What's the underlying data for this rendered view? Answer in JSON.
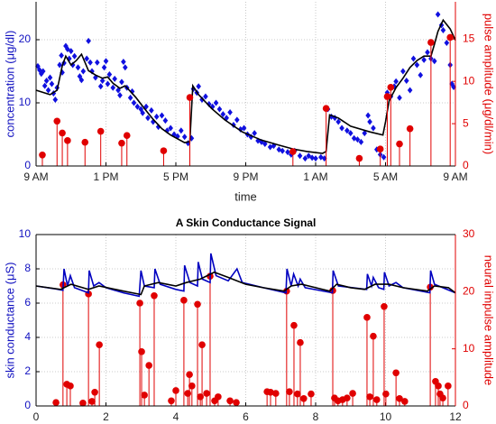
{
  "chart_data": [
    {
      "type": "combo",
      "ylabel": "concentration (μg/dl)",
      "y2label": "pulse amplitude (μg/dl/min)",
      "xlabel": "time",
      "xlim": [
        0,
        24
      ],
      "xticks": [
        {
          "value": 0,
          "label": "9 AM"
        },
        {
          "value": 4,
          "label": "1 PM"
        },
        {
          "value": 8,
          "label": "5 PM"
        },
        {
          "value": 12,
          "label": "9 PM"
        },
        {
          "value": 16,
          "label": "1 AM"
        },
        {
          "value": 20,
          "label": "5 AM"
        },
        {
          "value": 24,
          "label": "9 AM"
        }
      ],
      "ylim": [
        0,
        26
      ],
      "yticks": [
        0,
        10,
        20
      ],
      "y2lim": [
        0,
        19.4
      ],
      "y2ticks": [
        0,
        5,
        10,
        15
      ],
      "grid": true,
      "series": [
        {
          "type": "scatter",
          "color": "#1010e0",
          "x": [
            0.1,
            0.2,
            0.3,
            0.4,
            0.5,
            0.6,
            0.7,
            0.8,
            0.9,
            1.0,
            1.1,
            1.2,
            1.35,
            1.45,
            1.5,
            1.6,
            1.7,
            1.8,
            1.9,
            2.0,
            2.1,
            2.2,
            2.4,
            2.5,
            2.6,
            2.7,
            2.9,
            3.0,
            3.1,
            3.2,
            3.4,
            3.5,
            3.7,
            3.8,
            3.9,
            4.0,
            4.1,
            4.2,
            4.4,
            4.5,
            4.7,
            4.8,
            4.9,
            5.0,
            5.1,
            5.2,
            5.4,
            5.5,
            5.6,
            5.8,
            6.0,
            6.1,
            6.3,
            6.4,
            6.6,
            6.7,
            6.9,
            7.0,
            7.2,
            7.4,
            7.5,
            7.7,
            7.9,
            8.1,
            8.3,
            8.5,
            8.7,
            8.9,
            9.0,
            9.2,
            9.3,
            9.5,
            9.7,
            9.9,
            10.1,
            10.3,
            10.5,
            10.7,
            10.9,
            11.1,
            11.3,
            11.5,
            11.7,
            11.9,
            12.1,
            12.3,
            12.5,
            12.7,
            12.9,
            13.1,
            13.4,
            13.6,
            13.9,
            14.1,
            14.4,
            14.6,
            14.8,
            15.1,
            15.4,
            15.6,
            15.8,
            16.0,
            16.3,
            16.5,
            16.7,
            16.9,
            17.1,
            17.3,
            17.5,
            17.8,
            18.0,
            18.2,
            18.4,
            18.6,
            18.8,
            19.0,
            19.1,
            19.3,
            19.5,
            19.7,
            19.9,
            20.1,
            20.3,
            20.5,
            20.6,
            20.8,
            21.0,
            21.2,
            21.4,
            21.6,
            21.8,
            22.0,
            22.2,
            22.4,
            22.6,
            22.8,
            23.0,
            23.2,
            23.3,
            23.5,
            23.7,
            23.8,
            23.9
          ],
          "values": [
            15.8,
            15.2,
            14.6,
            15,
            12.7,
            13.5,
            12,
            14,
            13,
            11.5,
            10.5,
            12.4,
            16,
            17.5,
            14.8,
            16.3,
            19,
            18.5,
            17,
            18.2,
            16,
            17.4,
            15.6,
            14.2,
            13.6,
            15,
            17,
            19.8,
            16.4,
            15,
            14,
            16.4,
            12.6,
            13.5,
            15.6,
            16.6,
            13,
            14.5,
            12.4,
            13.8,
            12,
            11.2,
            13.3,
            16.5,
            15.6,
            12.4,
            10.8,
            11.8,
            10,
            9.4,
            9,
            8.4,
            9.4,
            7.6,
            8.8,
            7,
            7.8,
            6.2,
            8,
            7.2,
            5.6,
            6,
            5,
            4.7,
            5.6,
            4.6,
            3.6,
            4.4,
            12.2,
            11.6,
            12.6,
            10.5,
            11,
            9.8,
            9.4,
            10,
            9,
            8.2,
            7.6,
            8.5,
            6.5,
            7.3,
            5.8,
            6,
            5,
            4.6,
            5.2,
            4,
            3.8,
            3.5,
            3,
            3.2,
            2.6,
            2.4,
            2.2,
            1.8,
            2.4,
            1.6,
            1.2,
            1.6,
            1.3,
            1.2,
            1.4,
            1.2,
            9,
            7.8,
            7.6,
            7,
            6,
            5.6,
            5.2,
            4.4,
            4.2,
            3.8,
            5.2,
            8,
            7,
            6,
            2.6,
            1.8,
            1.4,
            11.6,
            11,
            12.6,
            13.4,
            10.8,
            15,
            13.5,
            12,
            17,
            16,
            14.4,
            16.8,
            18,
            17,
            16.6,
            24,
            22.3,
            21.5,
            19.5,
            16,
            13,
            12.5
          ]
        },
        {
          "type": "line",
          "color": "#000000",
          "x": [
            0,
            0.8,
            1.2,
            1.5,
            1.7,
            2.0,
            2.3,
            2.6,
            3.0,
            3.4,
            3.8,
            4.1,
            4.4,
            4.8,
            5.1,
            5.7,
            6.2,
            6.7,
            7.2,
            7.7,
            8.5,
            8.8,
            8.97,
            9.3,
            10.05,
            10.8,
            11.8,
            12.9,
            13.9,
            14.7,
            15.5,
            16.4,
            16.6,
            16.8,
            17.3,
            18.0,
            19.1,
            19.85,
            20.0,
            20.2,
            20.6,
            21.0,
            21.4,
            21.8,
            22.2,
            22.6,
            22.8,
            23.0,
            23.3,
            23.7,
            24
          ],
          "values": [
            12,
            11.3,
            12,
            15.9,
            17.4,
            16,
            16.7,
            17.7,
            15.1,
            14.4,
            13.9,
            14.1,
            13.1,
            12.3,
            12.7,
            10.9,
            9.1,
            7.4,
            5.9,
            4.9,
            3.7,
            3.9,
            12.7,
            11.3,
            9.1,
            7.3,
            5.4,
            4.1,
            3.3,
            2.7,
            2.3,
            2.0,
            2.3,
            8.1,
            7.6,
            6.3,
            5.4,
            4.9,
            7.0,
            10.3,
            12.4,
            13.9,
            15.6,
            16.7,
            17.4,
            17.4,
            19.3,
            21.3,
            23.1,
            21.7,
            19.9
          ]
        },
        {
          "type": "stem",
          "color": "#e00000",
          "axis": "y2",
          "x": [
            0.36,
            1.2,
            1.5,
            1.8,
            2.8,
            3.7,
            4.9,
            5.2,
            7.3,
            8.8,
            14.7,
            16.6,
            18.5,
            19.7,
            20.1,
            20.3,
            20.8,
            21.4,
            22.6,
            23.7
          ],
          "values": [
            1.3,
            5.3,
            3.9,
            3.0,
            2.8,
            4.1,
            2.7,
            3.6,
            1.8,
            8.1,
            1.7,
            6.8,
            0.9,
            2.0,
            8.2,
            9.3,
            2.6,
            4.4,
            14.6,
            15.2
          ]
        }
      ]
    },
    {
      "type": "combo",
      "title": "A Skin Conductance Signal",
      "ylabel": "skin conductance (μS)",
      "y2label": "neural impulse amplitude",
      "xlim": [
        0,
        12
      ],
      "xticks": [
        0,
        2,
        4,
        6,
        8,
        10,
        12
      ],
      "ylim": [
        0,
        10
      ],
      "yticks": [
        0,
        2,
        4,
        6,
        8,
        10
      ],
      "y2lim": [
        0,
        30
      ],
      "y2ticks": [
        0,
        10,
        20,
        30
      ],
      "grid": true,
      "series": [
        {
          "type": "stem",
          "color": "#e00000",
          "axis": "y2",
          "x": [
            0.57,
            0.77,
            0.88,
            0.98,
            1.34,
            1.5,
            1.6,
            1.68,
            1.81,
            2.97,
            3.02,
            3.1,
            3.23,
            3.38,
            3.87,
            4.0,
            4.23,
            4.34,
            4.39,
            4.46,
            4.62,
            4.7,
            4.75,
            4.88,
            4.98,
            5.11,
            5.21,
            5.55,
            5.73,
            6.61,
            6.71,
            6.86,
            7.17,
            7.25,
            7.38,
            7.48,
            7.56,
            7.66,
            7.87,
            8.49,
            8.54,
            8.64,
            8.77,
            8.9,
            9.06,
            9.47,
            9.55,
            9.65,
            9.75,
            9.96,
            10.01,
            10.3,
            10.4,
            10.55,
            11.28,
            11.43,
            11.51,
            11.56,
            11.64,
            11.79
          ],
          "values": [
            0.6,
            21.2,
            3.8,
            3.5,
            0.5,
            19.6,
            0.8,
            2.4,
            10.7,
            18.0,
            9.5,
            1.9,
            7.1,
            19.3,
            0.9,
            2.7,
            18.5,
            2.2,
            5.5,
            3.5,
            17.8,
            1.6,
            10.7,
            2.2,
            22.7,
            0.9,
            1.6,
            0.9,
            0.6,
            2.5,
            2.4,
            2.2,
            20.1,
            2.5,
            14.1,
            2.1,
            11.1,
            1.3,
            2.1,
            20.2,
            1.4,
            0.9,
            1.1,
            1.4,
            2.2,
            15.5,
            1.6,
            12.2,
            1.1,
            17.4,
            2.1,
            5.8,
            1.3,
            0.8,
            20.8,
            4.3,
            3.5,
            2.1,
            1.4,
            3.5
          ]
        },
        {
          "type": "line",
          "color": "#0000c0",
          "x": [
            0,
            0.5,
            0.77,
            0.8,
            0.9,
            0.98,
            1.1,
            1.5,
            1.52,
            1.65,
            1.8,
            2.0,
            2.5,
            2.95,
            3.0,
            3.1,
            3.38,
            3.4,
            3.55,
            4.0,
            4.23,
            4.25,
            4.4,
            4.62,
            4.64,
            4.76,
            4.98,
            5.0,
            5.15,
            5.5,
            5.75,
            5.9,
            6.5,
            7.15,
            7.18,
            7.3,
            7.37,
            7.5,
            7.56,
            7.7,
            8.48,
            8.5,
            8.65,
            9.46,
            9.48,
            9.6,
            9.65,
            9.8,
            9.95,
            9.97,
            10.1,
            10.3,
            10.5,
            11.27,
            11.29,
            11.4,
            12
          ],
          "values": [
            7.0,
            6.85,
            6.75,
            8.0,
            7.0,
            7.6,
            6.9,
            6.6,
            7.9,
            7.0,
            7.2,
            6.9,
            6.6,
            6.4,
            7.9,
            7.0,
            6.9,
            8.0,
            7.1,
            6.8,
            6.7,
            8.2,
            7.2,
            7.0,
            8.4,
            7.4,
            7.2,
            8.9,
            7.6,
            7.3,
            8.0,
            7.2,
            6.9,
            6.6,
            8.0,
            7.0,
            7.7,
            7.0,
            7.4,
            6.9,
            6.6,
            7.9,
            7.0,
            6.8,
            7.7,
            7.0,
            7.5,
            6.9,
            6.8,
            7.8,
            7.0,
            7.2,
            6.9,
            6.6,
            7.9,
            7.1,
            6.6
          ]
        },
        {
          "type": "line",
          "color": "#000000",
          "x": [
            0,
            0.7,
            1.0,
            1.5,
            1.8,
            2.5,
            3.0,
            3.1,
            3.5,
            4.0,
            4.3,
            4.7,
            5.1,
            5.5,
            6.0,
            6.5,
            7.1,
            7.3,
            7.6,
            8.0,
            8.4,
            8.6,
            9.0,
            9.4,
            9.7,
            10.1,
            10.5,
            11.2,
            11.4,
            11.8,
            12
          ],
          "values": [
            7.0,
            6.8,
            7.1,
            6.8,
            7.0,
            6.7,
            6.5,
            7.0,
            7.2,
            7.0,
            7.2,
            7.4,
            7.8,
            7.5,
            7.1,
            6.9,
            6.7,
            7.0,
            7.1,
            6.9,
            6.7,
            7.1,
            6.9,
            6.8,
            7.1,
            7.1,
            6.9,
            6.7,
            7.0,
            6.9,
            6.6
          ]
        }
      ]
    }
  ]
}
